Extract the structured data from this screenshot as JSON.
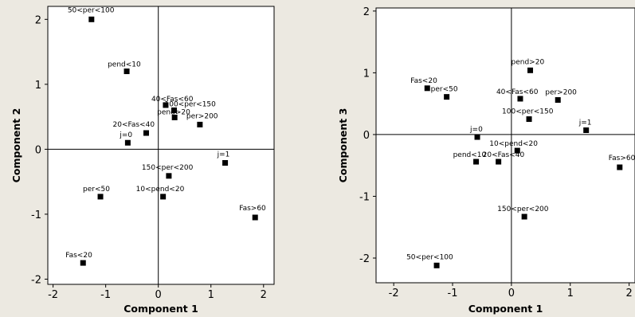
{
  "chart_data": [
    {
      "type": "scatter",
      "title": "",
      "xlabel": "Component 1",
      "ylabel": "Component 2",
      "xlim": [
        -2.1,
        2.2
      ],
      "ylim": [
        -2.08,
        2.2
      ],
      "xticks": [
        -2,
        -1,
        0,
        1,
        2
      ],
      "yticks": [
        -2,
        -1,
        0,
        1,
        2
      ],
      "reference_lines": {
        "x": 0,
        "y": 0
      },
      "marker": "filled-square",
      "color": "#000000",
      "points": [
        {
          "label": "50<per<100",
          "x": -1.27,
          "y": 2.0
        },
        {
          "label": "pend<10",
          "x": -0.6,
          "y": 1.2
        },
        {
          "label": "40<Fas<60",
          "x": 0.14,
          "y": 0.68
        },
        {
          "label": "100<per<150",
          "x": 0.3,
          "y": 0.6
        },
        {
          "label": "pend>20",
          "x": 0.31,
          "y": 0.49
        },
        {
          "label": "per>200",
          "x": 0.79,
          "y": 0.38
        },
        {
          "label": "20<Fas<40",
          "x": -0.23,
          "y": 0.25
        },
        {
          "label": "j=0",
          "x": -0.58,
          "y": 0.1
        },
        {
          "label": "j=1",
          "x": 1.27,
          "y": -0.21
        },
        {
          "label": "150<per<200",
          "x": 0.2,
          "y": -0.41
        },
        {
          "label": "10<pend<20",
          "x": 0.09,
          "y": -0.73
        },
        {
          "label": "per<50",
          "x": -1.1,
          "y": -0.73
        },
        {
          "label": "Fas>60",
          "x": 1.84,
          "y": -1.05
        },
        {
          "label": "Fas<20",
          "x": -1.43,
          "y": -1.75
        }
      ]
    },
    {
      "type": "scatter",
      "title": "",
      "xlabel": "Component 1",
      "ylabel": "Component 3",
      "xlim": [
        -2.3,
        2.1
      ],
      "ylim": [
        -2.4,
        2.05
      ],
      "xticks": [
        -2,
        -1,
        0,
        1,
        2
      ],
      "yticks": [
        -2,
        -1,
        0,
        1,
        2
      ],
      "reference_lines": {
        "x": 0,
        "y": 0
      },
      "marker": "filled-square",
      "color": "#000000",
      "points": [
        {
          "label": "pend>20",
          "x": 0.32,
          "y": 1.04
        },
        {
          "label": "Fas<20",
          "x": -1.43,
          "y": 0.75
        },
        {
          "label": "per<50",
          "x": -1.1,
          "y": 0.61
        },
        {
          "label": "40<Fas<60",
          "x": 0.15,
          "y": 0.58
        },
        {
          "label": "per>200",
          "x": 0.79,
          "y": 0.56
        },
        {
          "label": "100<per<150",
          "x": 0.3,
          "y": 0.25
        },
        {
          "label": "j=1",
          "x": 1.27,
          "y": 0.07
        },
        {
          "label": "j=0",
          "x": -0.58,
          "y": -0.04
        },
        {
          "label": "10<pend<20",
          "x": 0.1,
          "y": -0.26
        },
        {
          "label": "pend<10",
          "x": -0.6,
          "y": -0.44
        },
        {
          "label": "20<Fas<40",
          "x": -0.22,
          "y": -0.44
        },
        {
          "label": "Fas>60",
          "x": 1.84,
          "y": -0.53
        },
        {
          "label": "150<per<200",
          "x": 0.22,
          "y": -1.33
        },
        {
          "label": "50<per<100",
          "x": -1.27,
          "y": -2.12
        }
      ]
    }
  ]
}
